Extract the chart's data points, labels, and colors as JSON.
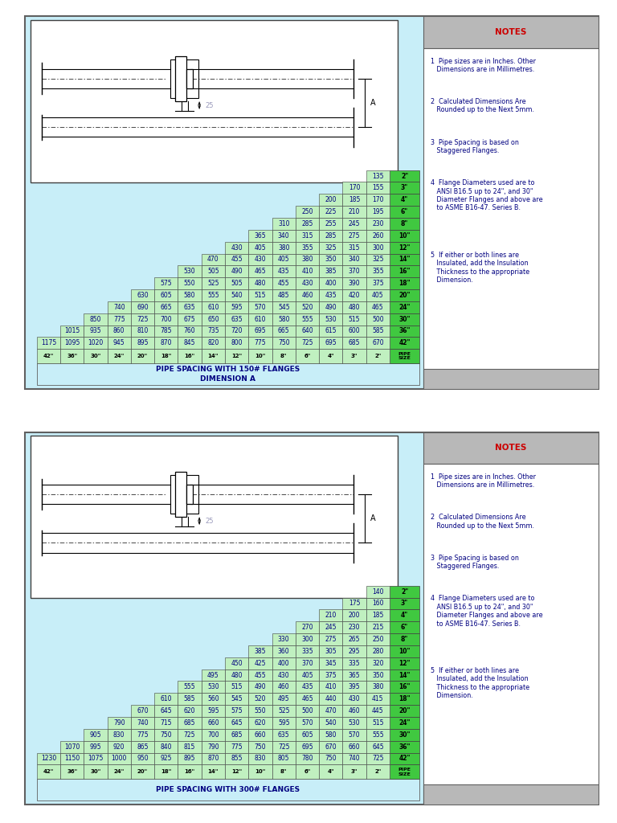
{
  "chart1": {
    "title_line1": "PIPE SPACING WITH 150# FLANGES",
    "title_line2": "DIMENSION A",
    "col_headers": [
      "42\"",
      "36\"",
      "30\"",
      "24\"",
      "20\"",
      "18\"",
      "16\"",
      "14\"",
      "12\"",
      "10\"",
      "8\"",
      "6\"",
      "4\"",
      "3\"",
      "2\""
    ],
    "pipe_sizes": [
      "2\"",
      "3\"",
      "4\"",
      "6\"",
      "8\"",
      "10\"",
      "12\"",
      "14\"",
      "16\"",
      "18\"",
      "20\"",
      "24\"",
      "30\"",
      "36\"",
      "42\""
    ],
    "table_data": [
      [
        null,
        null,
        null,
        null,
        null,
        null,
        null,
        null,
        null,
        null,
        null,
        null,
        null,
        null,
        135
      ],
      [
        null,
        null,
        null,
        null,
        null,
        null,
        null,
        null,
        null,
        null,
        null,
        null,
        null,
        170,
        155
      ],
      [
        null,
        null,
        null,
        null,
        null,
        null,
        null,
        null,
        null,
        null,
        null,
        null,
        200,
        185,
        170
      ],
      [
        null,
        null,
        null,
        null,
        null,
        null,
        null,
        null,
        null,
        null,
        null,
        250,
        225,
        210,
        195
      ],
      [
        null,
        null,
        null,
        null,
        null,
        null,
        null,
        null,
        null,
        null,
        310,
        285,
        255,
        245,
        230
      ],
      [
        null,
        null,
        null,
        null,
        null,
        null,
        null,
        null,
        null,
        365,
        340,
        315,
        285,
        275,
        260
      ],
      [
        null,
        null,
        null,
        null,
        null,
        null,
        null,
        null,
        430,
        405,
        380,
        355,
        325,
        315,
        300
      ],
      [
        null,
        null,
        null,
        null,
        null,
        null,
        null,
        470,
        455,
        430,
        405,
        380,
        350,
        340,
        325
      ],
      [
        null,
        null,
        null,
        null,
        null,
        null,
        530,
        505,
        490,
        465,
        435,
        410,
        385,
        370,
        355
      ],
      [
        null,
        null,
        null,
        null,
        null,
        575,
        550,
        525,
        505,
        480,
        455,
        430,
        400,
        390,
        375
      ],
      [
        null,
        null,
        null,
        null,
        630,
        605,
        580,
        555,
        540,
        515,
        485,
        460,
        435,
        420,
        405
      ],
      [
        null,
        null,
        null,
        740,
        690,
        665,
        635,
        610,
        595,
        570,
        545,
        520,
        490,
        480,
        465
      ],
      [
        null,
        null,
        850,
        775,
        725,
        700,
        675,
        650,
        635,
        610,
        580,
        555,
        530,
        515,
        500
      ],
      [
        null,
        1015,
        935,
        860,
        810,
        785,
        760,
        735,
        720,
        695,
        665,
        640,
        615,
        600,
        585
      ],
      [
        1175,
        1095,
        1020,
        945,
        895,
        870,
        845,
        820,
        800,
        775,
        750,
        725,
        695,
        685,
        670
      ]
    ]
  },
  "chart2": {
    "title_line1": "PIPE SPACING WITH 300# FLANGES",
    "title_line2": "",
    "col_headers": [
      "42\"",
      "36\"",
      "30\"",
      "24\"",
      "20\"",
      "18\"",
      "16\"",
      "14\"",
      "12\"",
      "10\"",
      "8\"",
      "6\"",
      "4\"",
      "3\"",
      "2\""
    ],
    "pipe_sizes": [
      "2\"",
      "3\"",
      "4\"",
      "6\"",
      "8\"",
      "10\"",
      "12\"",
      "14\"",
      "16\"",
      "18\"",
      "20\"",
      "24\"",
      "30\"",
      "36\"",
      "42\""
    ],
    "table_data": [
      [
        null,
        null,
        null,
        null,
        null,
        null,
        null,
        null,
        null,
        null,
        null,
        null,
        null,
        null,
        140
      ],
      [
        null,
        null,
        null,
        null,
        null,
        null,
        null,
        null,
        null,
        null,
        null,
        null,
        null,
        175,
        160
      ],
      [
        null,
        null,
        null,
        null,
        null,
        null,
        null,
        null,
        null,
        null,
        null,
        null,
        210,
        200,
        185
      ],
      [
        null,
        null,
        null,
        null,
        null,
        null,
        null,
        null,
        null,
        null,
        null,
        270,
        245,
        230,
        215
      ],
      [
        null,
        null,
        null,
        null,
        null,
        null,
        null,
        null,
        null,
        null,
        330,
        300,
        275,
        265,
        250
      ],
      [
        null,
        null,
        null,
        null,
        null,
        null,
        null,
        null,
        null,
        385,
        360,
        335,
        305,
        295,
        280
      ],
      [
        null,
        null,
        null,
        null,
        null,
        null,
        null,
        null,
        450,
        425,
        400,
        370,
        345,
        335,
        320
      ],
      [
        null,
        null,
        null,
        null,
        null,
        null,
        null,
        495,
        480,
        455,
        430,
        405,
        375,
        365,
        350
      ],
      [
        null,
        null,
        null,
        null,
        null,
        null,
        555,
        530,
        515,
        490,
        460,
        435,
        410,
        395,
        380
      ],
      [
        null,
        null,
        null,
        null,
        null,
        610,
        585,
        560,
        545,
        520,
        495,
        465,
        440,
        430,
        415
      ],
      [
        null,
        null,
        null,
        null,
        670,
        645,
        620,
        595,
        575,
        550,
        525,
        500,
        470,
        460,
        445
      ],
      [
        null,
        null,
        null,
        790,
        740,
        715,
        685,
        660,
        645,
        620,
        595,
        570,
        540,
        530,
        515
      ],
      [
        null,
        null,
        905,
        830,
        775,
        750,
        725,
        700,
        685,
        660,
        635,
        605,
        580,
        570,
        555
      ],
      [
        null,
        1070,
        995,
        920,
        865,
        840,
        815,
        790,
        775,
        750,
        725,
        695,
        670,
        660,
        645
      ],
      [
        1230,
        1150,
        1075,
        1000,
        950,
        925,
        895,
        870,
        855,
        830,
        805,
        780,
        750,
        740,
        725
      ]
    ]
  },
  "notes": [
    "1  Pipe sizes are in Inches. Other\n   Dimensions are in Millimetres.",
    "2  Calculated Dimensions Are\n   Rounded up to the Next 5mm.",
    "3  Pipe Spacing is based on\n   Staggered Flanges.",
    "4  Flange Diameters used are to\n   ANSI B16.5 up to 24\", and 30\"\n   Diameter Flanges and above are\n   to ASME B16-47. Series B.",
    "5  If either or both lines are\n   Insulated, add the Insulation\n   Thickness to the appropriate\n   Dimension."
  ],
  "notes_title": "NOTES",
  "bg_color": "#c8eef8",
  "cell_fill": "#c0f0c0",
  "pipe_size_fill": "#40c840",
  "notes_bg": "#c8c8c8",
  "notes_text_color": "#000080",
  "notes_title_color": "#cc0000",
  "table_text_color": "#000080",
  "title_text_color": "#000080",
  "border_color": "#404040"
}
